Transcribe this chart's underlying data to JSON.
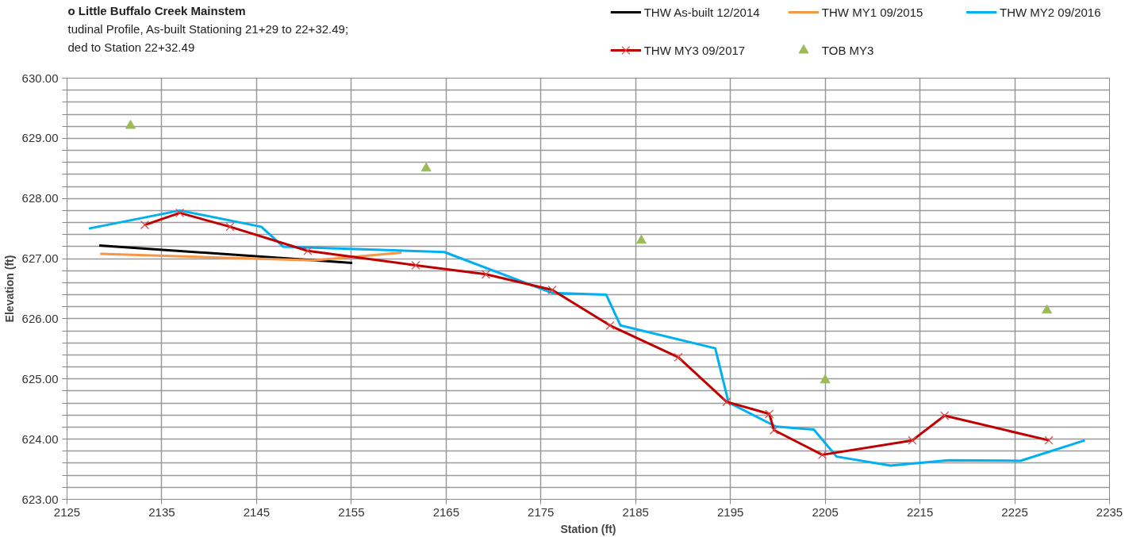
{
  "chart_data": {
    "type": "line",
    "title": "o Little Buffalo Creek Mainstem",
    "subtitle": "tudinal Profile, As-built Stationing 21+29 to 22+32.49;\nded to  Station 22+32.49",
    "xlabel": "Station (ft)",
    "ylabel": "Elevation (ft)",
    "xlim": [
      2125,
      2235
    ],
    "xticks": [
      2125,
      2135,
      2145,
      2155,
      2165,
      2175,
      2185,
      2195,
      2205,
      2215,
      2225,
      2235
    ],
    "ylim": [
      623,
      630
    ],
    "yticks": [
      {
        "value": 623,
        "label": "623.00"
      },
      {
        "value": 623.2,
        "label": null
      },
      {
        "value": 623.4,
        "label": null
      },
      {
        "value": 623.6,
        "label": null
      },
      {
        "value": 623.8,
        "label": null
      },
      {
        "value": 624,
        "label": "624.00"
      },
      {
        "value": 624.2,
        "label": null
      },
      {
        "value": 624.4,
        "label": null
      },
      {
        "value": 624.6,
        "label": null
      },
      {
        "value": 624.8,
        "label": null
      },
      {
        "value": 625,
        "label": "625.00"
      },
      {
        "value": 625.2,
        "label": null
      },
      {
        "value": 625.4,
        "label": null
      },
      {
        "value": 625.6,
        "label": null
      },
      {
        "value": 625.8,
        "label": null
      },
      {
        "value": 626,
        "label": "626.00"
      },
      {
        "value": 626.2,
        "label": null
      },
      {
        "value": 626.4,
        "label": null
      },
      {
        "value": 626.6,
        "label": null
      },
      {
        "value": 626.8,
        "label": null
      },
      {
        "value": 627,
        "label": "627.00"
      },
      {
        "value": 627.2,
        "label": null
      },
      {
        "value": 627.4,
        "label": null
      },
      {
        "value": 627.6,
        "label": null
      },
      {
        "value": 627.8,
        "label": null
      },
      {
        "value": 628,
        "label": "628.00"
      },
      {
        "value": 628.2,
        "label": null
      },
      {
        "value": 628.4,
        "label": null
      },
      {
        "value": 628.6,
        "label": null
      },
      {
        "value": 628.8,
        "label": null
      },
      {
        "value": 629,
        "label": "629.00"
      },
      {
        "value": 629.2,
        "label": null
      },
      {
        "value": 629.4,
        "label": null
      },
      {
        "value": 629.6,
        "label": null
      },
      {
        "value": 629.8,
        "label": null
      },
      {
        "value": 630,
        "label": "630.00"
      }
    ],
    "grid": true,
    "legend": "top right",
    "marker": "none",
    "line_style": "solid",
    "series": [
      {
        "name": "THW As-built 12/2014",
        "color": "#000000",
        "x": [
          2128.4,
          2155.1
        ],
        "values": [
          627.22,
          626.93
        ]
      },
      {
        "name": "THW MY1 09/2015",
        "color": "#f79646",
        "x": [
          2128.5,
          2151.0,
          2160.3
        ],
        "values": [
          627.08,
          626.97,
          627.1
        ]
      },
      {
        "name": "THW MY2 09/2016",
        "color": "#00b0f0",
        "x": [
          2127.3,
          2136.9,
          2145.5,
          2147.8,
          2164.8,
          2176.2,
          2181.9,
          2183.4,
          2193.4,
          2194.8,
          2199.8,
          2203.8,
          2206.2,
          2211.9,
          2218.0,
          2225.6,
          2232.4
        ],
        "values": [
          627.5,
          627.8,
          627.53,
          627.2,
          627.11,
          626.43,
          626.4,
          625.89,
          625.51,
          624.61,
          624.21,
          624.16,
          623.71,
          623.56,
          623.65,
          623.64,
          623.98
        ]
      },
      {
        "name": "THW MY3 09/2017",
        "color": "#c00000",
        "marker": "cross",
        "x": [
          2133.2,
          2136.9,
          2142.2,
          2150.4,
          2161.8,
          2169.2,
          2176.2,
          2182.3,
          2189.5,
          2194.6,
          2199.1,
          2199.6,
          2204.7,
          2214.2,
          2217.6,
          2228.6
        ],
        "values": [
          627.56,
          627.76,
          627.53,
          627.13,
          626.89,
          626.74,
          626.48,
          625.89,
          625.36,
          624.62,
          624.42,
          624.15,
          623.74,
          623.98,
          624.39,
          623.98
        ]
      },
      {
        "name": "TOB MY3",
        "type": "scatter",
        "color": "#9bbb59",
        "marker": "triangle",
        "x": [
          2131.7,
          2162.9,
          2185.6,
          2205.0,
          2228.4
        ],
        "values": [
          629.21,
          628.5,
          627.3,
          624.98,
          626.14
        ]
      }
    ]
  }
}
